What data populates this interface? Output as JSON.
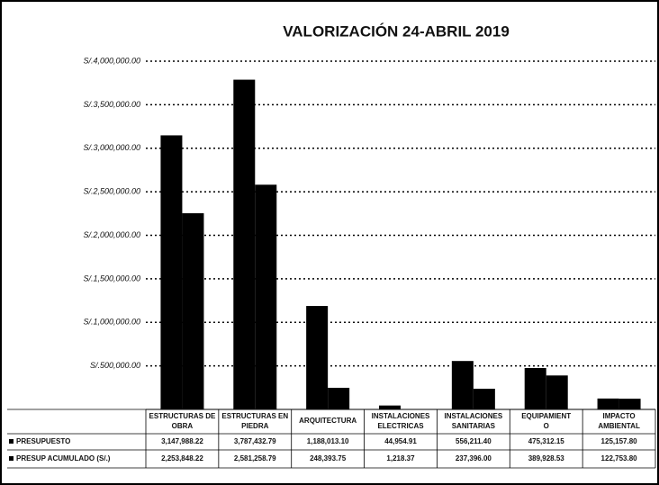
{
  "chart_data": {
    "type": "bar",
    "title": "VALORIZACIÓN 24-ABRIL 2019",
    "categories": [
      "ESTRUCTURAS DE OBRA",
      "ESTRUCTURAS EN PIEDRA",
      "ARQUITECTURA",
      "INSTALACIONES ELECTRICAS",
      "INSTALACIONES SANITARIAS",
      "EQUIPAMIENT O",
      "IMPACTO AMBIENTAL"
    ],
    "series": [
      {
        "name": "PRESUPUESTO",
        "color": "#000000",
        "values": [
          3147988.22,
          3787432.79,
          1188013.1,
          44954.91,
          556211.4,
          475312.15,
          125157.8
        ],
        "value_labels": [
          "3,147,988.22",
          "3,787,432.79",
          "1,188,013.10",
          "44,954.91",
          "556,211.40",
          "475,312.15",
          "125,157.80"
        ]
      },
      {
        "name": "PRESUP ACUMULADO (S/.)",
        "color": "#000000",
        "values": [
          2253848.22,
          2581258.79,
          248393.75,
          1218.37,
          237396.0,
          389928.53,
          122753.8
        ],
        "value_labels": [
          "2,253,848.22",
          "2,581,258.79",
          "248,393.75",
          "1,218.37",
          "237,396.00",
          "389,928.53",
          "122,753.80"
        ]
      }
    ],
    "ylim": [
      0,
      4000000
    ],
    "yticks": [
      {
        "value": 500000,
        "label": "S/.500,000.00"
      },
      {
        "value": 1000000,
        "label": "S/.1,000,000.00"
      },
      {
        "value": 1500000,
        "label": "S/.1,500,000.00"
      },
      {
        "value": 2000000,
        "label": "S/.2,000,000.00"
      },
      {
        "value": 2500000,
        "label": "S/.2,500,000.00"
      },
      {
        "value": 3000000,
        "label": "S/.3,000,000.00"
      },
      {
        "value": 3500000,
        "label": "S/.3,500,000.00"
      },
      {
        "value": 4000000,
        "label": "S/.4,000,000.00"
      }
    ],
    "grid": true
  }
}
